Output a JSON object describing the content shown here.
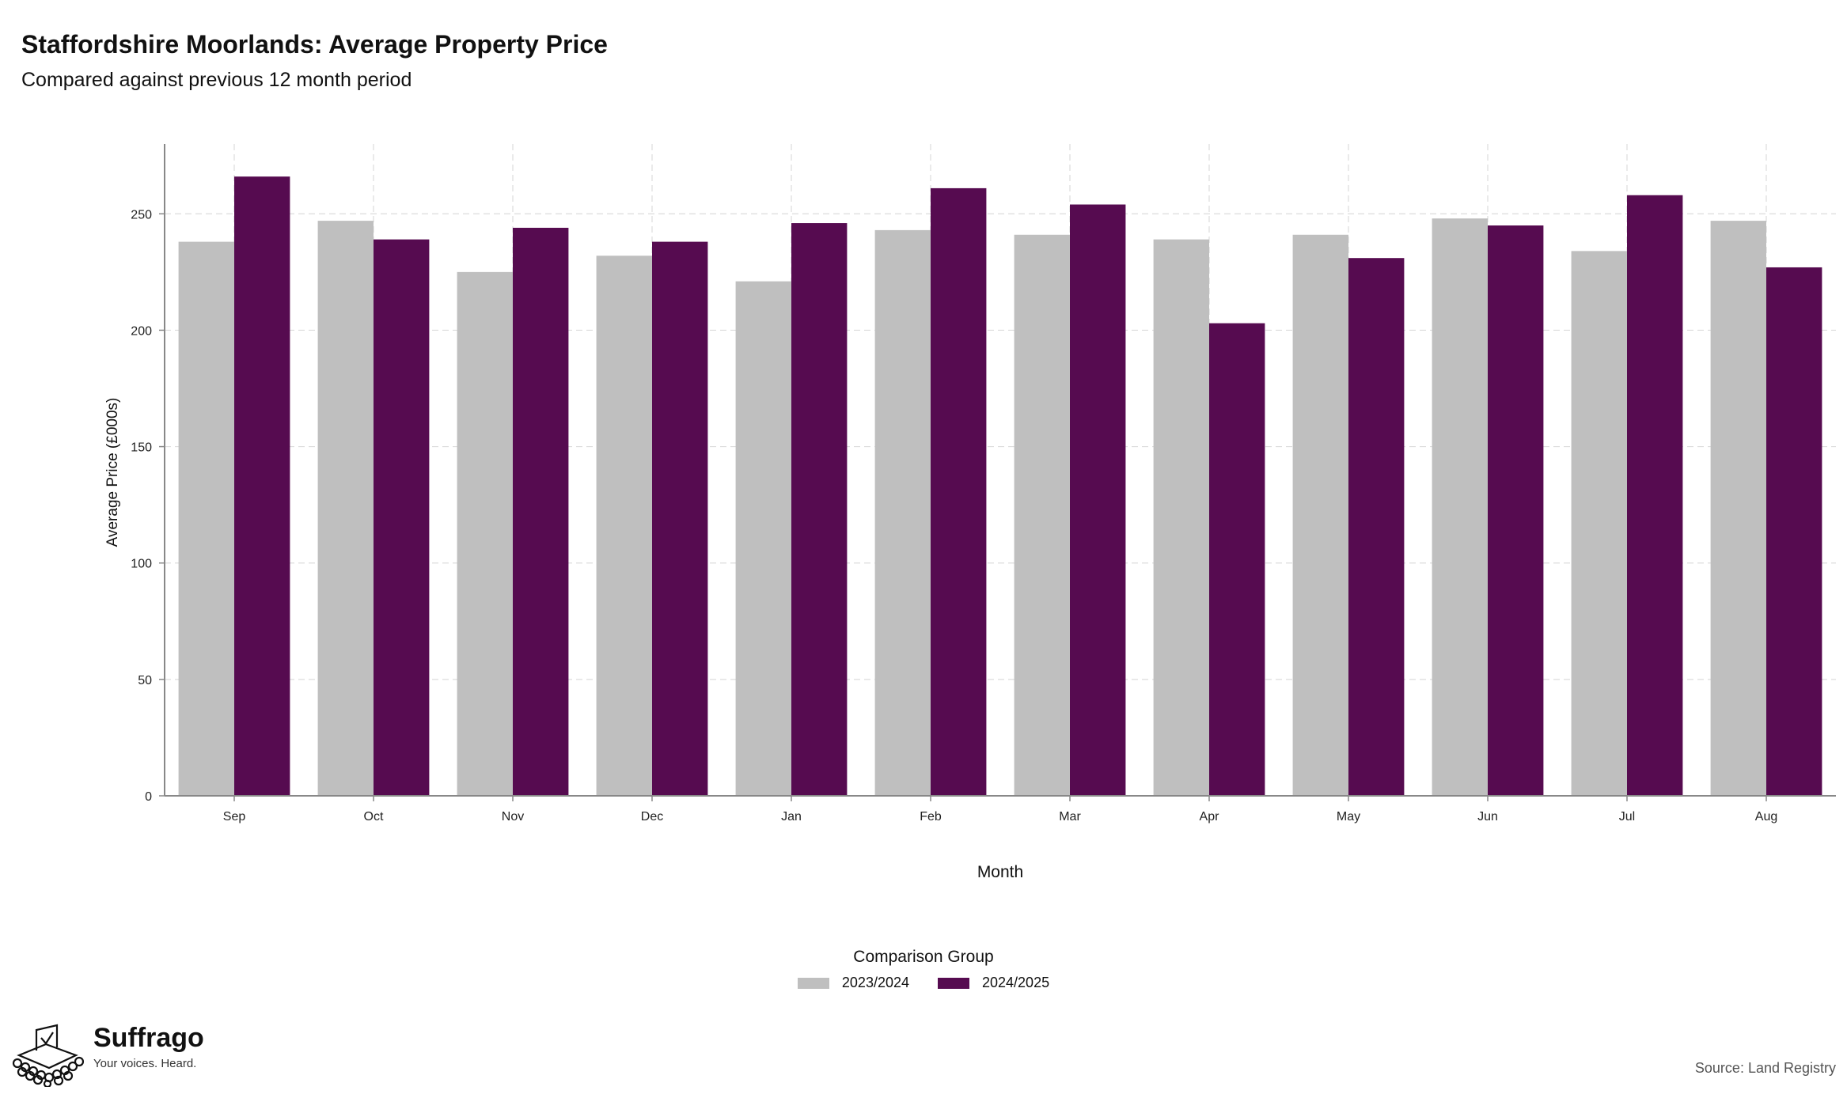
{
  "header": {
    "title": "Staffordshire Moorlands: Average Property Price",
    "subtitle": "Compared against previous 12 month period"
  },
  "chart_data": {
    "type": "bar",
    "categories": [
      "Sep",
      "Oct",
      "Nov",
      "Dec",
      "Jan",
      "Feb",
      "Mar",
      "Apr",
      "May",
      "Jun",
      "Jul",
      "Aug"
    ],
    "series": [
      {
        "name": "2023/2024",
        "color": "#bfbfbf",
        "values": [
          238,
          247,
          225,
          232,
          221,
          243,
          241,
          239,
          241,
          248,
          234,
          247
        ]
      },
      {
        "name": "2024/2025",
        "color": "#560b50",
        "values": [
          266,
          239,
          244,
          238,
          246,
          261,
          254,
          203,
          231,
          245,
          258,
          227
        ]
      }
    ],
    "xlabel": "Month",
    "ylabel": "Average Price (£000s)",
    "ylim": [
      0,
      280
    ],
    "yticks": [
      0,
      50,
      100,
      150,
      200,
      250
    ],
    "grid": true,
    "legend_title": "Comparison Group",
    "legend_position": "bottom"
  },
  "branding": {
    "name": "Suffrago",
    "tagline": "Your voices. Heard."
  },
  "source": "Source: Land Registry"
}
